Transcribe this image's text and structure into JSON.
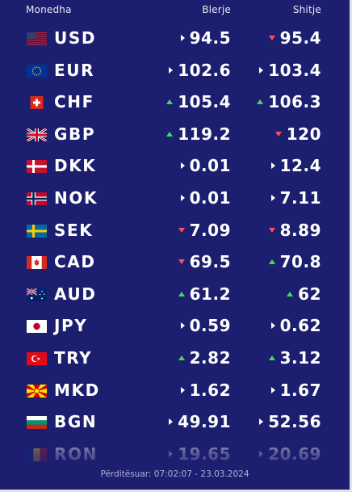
{
  "header": {
    "name": "Monedha",
    "buy": "Blerje",
    "sell": "Shitje"
  },
  "rates": [
    {
      "code": "USD",
      "flag": "us-flag-icon",
      "buy": "94.5",
      "buy_dir": "flat",
      "sell": "95.4",
      "sell_dir": "down"
    },
    {
      "code": "EUR",
      "flag": "eu-flag-icon",
      "buy": "102.6",
      "buy_dir": "flat",
      "sell": "103.4",
      "sell_dir": "flat"
    },
    {
      "code": "CHF",
      "flag": "ch-flag-icon",
      "buy": "105.4",
      "buy_dir": "up",
      "sell": "106.3",
      "sell_dir": "up"
    },
    {
      "code": "GBP",
      "flag": "gb-flag-icon",
      "buy": "119.2",
      "buy_dir": "up",
      "sell": "120",
      "sell_dir": "down"
    },
    {
      "code": "DKK",
      "flag": "dk-flag-icon",
      "buy": "0.01",
      "buy_dir": "flat",
      "sell": "12.4",
      "sell_dir": "flat"
    },
    {
      "code": "NOK",
      "flag": "no-flag-icon",
      "buy": "0.01",
      "buy_dir": "flat",
      "sell": "7.11",
      "sell_dir": "flat"
    },
    {
      "code": "SEK",
      "flag": "se-flag-icon",
      "buy": "7.09",
      "buy_dir": "down",
      "sell": "8.89",
      "sell_dir": "down"
    },
    {
      "code": "CAD",
      "flag": "ca-flag-icon",
      "buy": "69.5",
      "buy_dir": "down",
      "sell": "70.8",
      "sell_dir": "up"
    },
    {
      "code": "AUD",
      "flag": "au-flag-icon",
      "buy": "61.2",
      "buy_dir": "up",
      "sell": "62",
      "sell_dir": "up"
    },
    {
      "code": "JPY",
      "flag": "jp-flag-icon",
      "buy": "0.59",
      "buy_dir": "flat",
      "sell": "0.62",
      "sell_dir": "flat"
    },
    {
      "code": "TRY",
      "flag": "tr-flag-icon",
      "buy": "2.82",
      "buy_dir": "up",
      "sell": "3.12",
      "sell_dir": "up"
    },
    {
      "code": "MKD",
      "flag": "mk-flag-icon",
      "buy": "1.62",
      "buy_dir": "flat",
      "sell": "1.67",
      "sell_dir": "flat"
    },
    {
      "code": "BGN",
      "flag": "bg-flag-icon",
      "buy": "49.91",
      "buy_dir": "flat",
      "sell": "52.56",
      "sell_dir": "flat"
    },
    {
      "code": "RON",
      "flag": "ro-flag-icon",
      "buy": "19.65",
      "buy_dir": "flat",
      "sell": "20.69",
      "sell_dir": "flat"
    }
  ],
  "footer": {
    "updated": "Përditësuar: 07:02:07 - 23.03.2024"
  },
  "colors": {
    "background": "#1c1f70",
    "up": "#3ddc5a",
    "down": "#ff4d5e"
  }
}
